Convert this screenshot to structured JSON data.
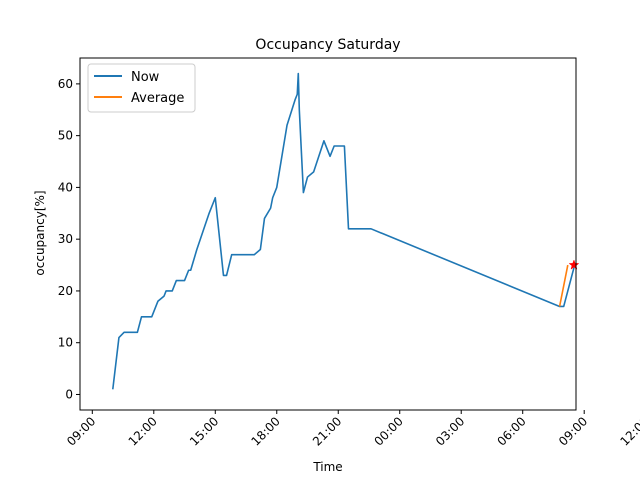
{
  "chart_data": {
    "type": "line",
    "title": "Occupancy Saturday",
    "xlabel": "Time",
    "ylabel": "occupancy[%]",
    "x_unit": "hours since 00:00 Saturday",
    "xlim": [
      8.4,
      32.6
    ],
    "ylim": [
      -3.0,
      65.0
    ],
    "x_ticks": [
      {
        "value": 9,
        "label": "09:00"
      },
      {
        "value": 12,
        "label": "12:00"
      },
      {
        "value": 15,
        "label": "15:00"
      },
      {
        "value": 18,
        "label": "18:00"
      },
      {
        "value": 21,
        "label": "21:00"
      },
      {
        "value": 24,
        "label": "00:00"
      },
      {
        "value": 27,
        "label": "03:00"
      },
      {
        "value": 30,
        "label": "06:00"
      },
      {
        "value": 33,
        "label": "09:00"
      },
      {
        "value": 36,
        "label": "12:00"
      }
    ],
    "y_ticks": [
      0,
      10,
      20,
      30,
      40,
      50,
      60
    ],
    "legend_position": "upper left",
    "grid": false,
    "series": [
      {
        "name": "Now",
        "color": "#1f77b4",
        "points": [
          [
            10.0,
            1
          ],
          [
            10.3,
            11
          ],
          [
            10.55,
            12
          ],
          [
            11.2,
            12
          ],
          [
            11.4,
            15
          ],
          [
            11.9,
            15
          ],
          [
            12.2,
            18
          ],
          [
            12.5,
            19
          ],
          [
            12.6,
            20
          ],
          [
            12.9,
            20
          ],
          [
            13.1,
            22
          ],
          [
            13.5,
            22
          ],
          [
            13.7,
            24
          ],
          [
            13.8,
            24
          ],
          [
            14.1,
            28
          ],
          [
            14.7,
            35
          ],
          [
            15.0,
            38
          ],
          [
            15.4,
            23
          ],
          [
            15.55,
            23
          ],
          [
            15.8,
            27
          ],
          [
            16.9,
            27
          ],
          [
            17.2,
            28
          ],
          [
            17.4,
            34
          ],
          [
            17.7,
            36
          ],
          [
            17.8,
            38
          ],
          [
            18.0,
            40
          ],
          [
            18.5,
            52
          ],
          [
            18.9,
            57
          ],
          [
            19.0,
            58
          ],
          [
            19.05,
            62
          ],
          [
            19.1,
            55
          ],
          [
            19.3,
            39
          ],
          [
            19.5,
            42
          ],
          [
            19.8,
            43
          ],
          [
            20.3,
            49
          ],
          [
            20.6,
            46
          ],
          [
            20.8,
            48
          ],
          [
            21.3,
            48
          ],
          [
            21.5,
            32
          ],
          [
            22.6,
            32
          ],
          [
            31.8,
            17
          ],
          [
            32.0,
            17
          ],
          [
            32.5,
            24.5
          ]
        ]
      },
      {
        "name": "Average",
        "color": "#ff7f0e",
        "points": [
          [
            31.8,
            17
          ],
          [
            32.2,
            25
          ]
        ]
      }
    ],
    "marker": {
      "x": 32.5,
      "y": 25,
      "color": "#ff0000",
      "shape": "star"
    }
  }
}
